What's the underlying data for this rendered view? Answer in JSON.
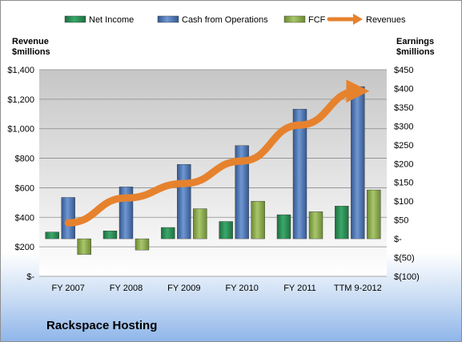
{
  "chart_data": {
    "type": "bar",
    "categories": [
      "FY 2007",
      "FY 2008",
      "FY 2009",
      "FY 2010",
      "FY 2011",
      "TTM 9-2012"
    ],
    "series": [
      {
        "name": "Net Income",
        "axis": "right",
        "values": [
          18,
          21,
          30,
          46,
          64,
          87
        ],
        "color": "#2e8b57"
      },
      {
        "name": "Cash from Operations",
        "axis": "right",
        "values": [
          110,
          138,
          198,
          248,
          345,
          405
        ],
        "color": "#4a74b4"
      },
      {
        "name": "FCF",
        "axis": "right",
        "values": [
          -42,
          -30,
          80,
          100,
          72,
          130
        ],
        "color": "#8cb04a"
      },
      {
        "name": "Revenues",
        "axis": "left",
        "type": "line",
        "values": [
          362,
          531,
          629,
          781,
          1025,
          1255
        ],
        "color": "#e6822e"
      }
    ],
    "left_axis": {
      "title_line1": "Revenue",
      "title_line2": "$millions",
      "range": [
        0,
        1400
      ],
      "ticks": [
        0,
        200,
        400,
        600,
        800,
        1000,
        1200,
        1400
      ],
      "tick_labels": [
        "$-",
        "$200",
        "$400",
        "$600",
        "$800",
        "$1,000",
        "$1,200",
        "$1,400"
      ]
    },
    "right_axis": {
      "title_line1": "Earnings",
      "title_line2": "$millions",
      "range": [
        -100,
        450
      ],
      "ticks": [
        -100,
        -50,
        0,
        50,
        100,
        150,
        200,
        250,
        300,
        350,
        400,
        450
      ],
      "tick_labels": [
        "$(100)",
        "$(50)",
        "$-",
        "$50",
        "$100",
        "$150",
        "$200",
        "$250",
        "$300",
        "$350",
        "$400",
        "$450"
      ]
    },
    "legend_position": "top",
    "grid": true
  },
  "company_name": "Rackspace Hosting"
}
